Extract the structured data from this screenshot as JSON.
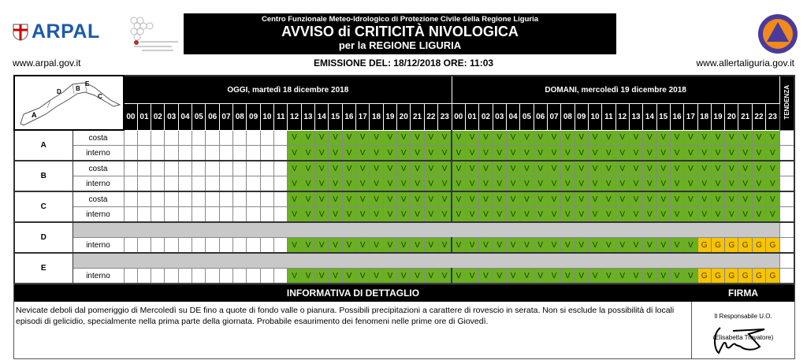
{
  "header": {
    "arpal_logo": "ARPAL",
    "org": "Centro Funzionale Meteo-Idrologico di Protezione Civile della Regione Liguria",
    "title": "AVVISO di CRITICITÀ NIVOLOGICA",
    "subtitle": "per la REGIONE LIGURIA",
    "url_left": "www.arpal.gov.it",
    "url_right": "www.allertaliguria.gov.it",
    "emission": "EMISSIONE DEL: 18/12/2018 ORE: 11:03"
  },
  "colors": {
    "green": "#6ab023",
    "yellow": "#f6c400",
    "grey": "#c8c8c8"
  },
  "table": {
    "day1": "OGGI, martedì 18 dicembre 2018",
    "day2": "DOMANI, mercoledì 19 dicembre 2018",
    "tendenza": "TENDENZA",
    "hours": [
      "00",
      "01",
      "02",
      "03",
      "04",
      "05",
      "06",
      "07",
      "08",
      "09",
      "10",
      "11",
      "12",
      "13",
      "14",
      "15",
      "16",
      "17",
      "18",
      "19",
      "20",
      "21",
      "22",
      "23"
    ],
    "map_labels": [
      "A",
      "B",
      "C",
      "D",
      "E"
    ],
    "zones": [
      {
        "zone": "A",
        "rows": [
          {
            "label": "costa",
            "cells": [
              "",
              "",
              "",
              "",
              "",
              "",
              "",
              "",
              "",
              "",
              "",
              "",
              "V",
              "V",
              "V",
              "V",
              "V",
              "V",
              "V",
              "V",
              "V",
              "V",
              "V",
              "V",
              "V",
              "V",
              "V",
              "V",
              "V",
              "V",
              "V",
              "V",
              "V",
              "V",
              "V",
              "V",
              "V",
              "V",
              "V",
              "V",
              "V",
              "V",
              "V",
              "V",
              "V",
              "V",
              "V",
              "V"
            ]
          },
          {
            "label": "interno",
            "cells": [
              "",
              "",
              "",
              "",
              "",
              "",
              "",
              "",
              "",
              "",
              "",
              "",
              "V",
              "V",
              "V",
              "V",
              "V",
              "V",
              "V",
              "V",
              "V",
              "V",
              "V",
              "V",
              "V",
              "V",
              "V",
              "V",
              "V",
              "V",
              "V",
              "V",
              "V",
              "V",
              "V",
              "V",
              "V",
              "V",
              "V",
              "V",
              "V",
              "V",
              "V",
              "V",
              "V",
              "V",
              "V",
              "V"
            ]
          }
        ]
      },
      {
        "zone": "B",
        "rows": [
          {
            "label": "costa",
            "cells": [
              "",
              "",
              "",
              "",
              "",
              "",
              "",
              "",
              "",
              "",
              "",
              "",
              "V",
              "V",
              "V",
              "V",
              "V",
              "V",
              "V",
              "V",
              "V",
              "V",
              "V",
              "V",
              "V",
              "V",
              "V",
              "V",
              "V",
              "V",
              "V",
              "V",
              "V",
              "V",
              "V",
              "V",
              "V",
              "V",
              "V",
              "V",
              "V",
              "V",
              "V",
              "V",
              "V",
              "V",
              "V",
              "V"
            ]
          },
          {
            "label": "interno",
            "cells": [
              "",
              "",
              "",
              "",
              "",
              "",
              "",
              "",
              "",
              "",
              "",
              "",
              "V",
              "V",
              "V",
              "V",
              "V",
              "V",
              "V",
              "V",
              "V",
              "V",
              "V",
              "V",
              "V",
              "V",
              "V",
              "V",
              "V",
              "V",
              "V",
              "V",
              "V",
              "V",
              "V",
              "V",
              "V",
              "V",
              "V",
              "V",
              "V",
              "V",
              "V",
              "V",
              "V",
              "V",
              "V",
              "V"
            ]
          }
        ]
      },
      {
        "zone": "C",
        "rows": [
          {
            "label": "costa",
            "cells": [
              "",
              "",
              "",
              "",
              "",
              "",
              "",
              "",
              "",
              "",
              "",
              "",
              "V",
              "V",
              "V",
              "V",
              "V",
              "V",
              "V",
              "V",
              "V",
              "V",
              "V",
              "V",
              "V",
              "V",
              "V",
              "V",
              "V",
              "V",
              "V",
              "V",
              "V",
              "V",
              "V",
              "V",
              "V",
              "V",
              "V",
              "V",
              "V",
              "V",
              "V",
              "V",
              "V",
              "V",
              "V",
              "V"
            ]
          },
          {
            "label": "interno",
            "cells": [
              "",
              "",
              "",
              "",
              "",
              "",
              "",
              "",
              "",
              "",
              "",
              "",
              "V",
              "V",
              "V",
              "V",
              "V",
              "V",
              "V",
              "V",
              "V",
              "V",
              "V",
              "V",
              "V",
              "V",
              "V",
              "V",
              "V",
              "V",
              "V",
              "V",
              "V",
              "V",
              "V",
              "V",
              "V",
              "V",
              "V",
              "V",
              "V",
              "V",
              "V",
              "V",
              "V",
              "V",
              "V",
              "V"
            ]
          }
        ]
      },
      {
        "zone": "D",
        "rows": [
          {
            "label": "",
            "grey": true
          },
          {
            "label": "interno",
            "cells": [
              "",
              "",
              "",
              "",
              "",
              "",
              "",
              "",
              "",
              "",
              "",
              "",
              "V",
              "V",
              "V",
              "V",
              "V",
              "V",
              "V",
              "V",
              "V",
              "V",
              "V",
              "V",
              "V",
              "V",
              "V",
              "V",
              "V",
              "V",
              "V",
              "V",
              "V",
              "V",
              "V",
              "V",
              "V",
              "V",
              "V",
              "V",
              "V",
              "V",
              "G",
              "G",
              "G",
              "G",
              "G",
              "G"
            ]
          }
        ]
      },
      {
        "zone": "E",
        "rows": [
          {
            "label": "",
            "grey": true
          },
          {
            "label": "interno",
            "cells": [
              "",
              "",
              "",
              "",
              "",
              "",
              "",
              "",
              "",
              "",
              "",
              "",
              "V",
              "V",
              "V",
              "V",
              "V",
              "V",
              "V",
              "V",
              "V",
              "V",
              "V",
              "V",
              "V",
              "V",
              "V",
              "V",
              "V",
              "V",
              "V",
              "V",
              "V",
              "V",
              "V",
              "V",
              "V",
              "V",
              "V",
              "V",
              "V",
              "V",
              "G",
              "G",
              "G",
              "G",
              "G",
              "G"
            ]
          }
        ]
      }
    ]
  },
  "info": {
    "title": "INFORMATIVA DI DETTAGLIO",
    "text": "Nevicate deboli dal pomeriggio di Mercoledì su DE fino a quote di fondo valle o pianura. Possibili precipitazioni a carattere di rovescio in serata. Non si esclude la possibilità di locali episodi di gelicidio, specialmente nella prima parte della giornata. Probabile esaurimento dei fenomeni nelle prime ore di Giovedì.",
    "sign_title": "FIRMA",
    "sign_role": "Il Responsabile U.O.",
    "sign_name": "(Elisabetta Trovatore)"
  }
}
